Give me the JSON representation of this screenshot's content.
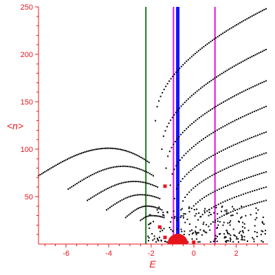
{
  "chart_data": {
    "type": "scatter",
    "xlabel": "E",
    "ylabel": "<n>",
    "xlim": [
      -7.3,
      3.5
    ],
    "ylim": [
      0,
      250
    ],
    "grid": false,
    "x_ticks": [
      -6,
      -4,
      -2,
      0,
      2
    ],
    "y_ticks": [
      50,
      100,
      150,
      200,
      250
    ],
    "colors": {
      "axis": "#e8141c",
      "points": "#000000",
      "highlight": "#e8141c",
      "line_green": "#1a7a1a",
      "line_blue": "#1414ff",
      "line_magenta": "#e010e0"
    },
    "vertical_lines": [
      {
        "x": -2.25,
        "color": "#1a7a1a",
        "width": 2
      },
      {
        "x": -0.95,
        "color": "#e010e0",
        "width": 2
      },
      {
        "x": -0.75,
        "color": "#1414ff",
        "width": 5
      },
      {
        "x": 1.0,
        "color": "#e010e0",
        "width": 2
      }
    ],
    "bands": [
      {
        "x_start": -7.3,
        "y_start": 72,
        "x_peak": -4.0,
        "y_peak": 101,
        "x_end": -2.1,
        "y_end": 86,
        "count": 70
      },
      {
        "x_start": -5.9,
        "y_start": 58,
        "x_peak": -3.3,
        "y_peak": 82,
        "x_end": -1.9,
        "y_end": 72,
        "count": 50
      },
      {
        "x_start": -5.0,
        "y_start": 46,
        "x_peak": -2.8,
        "y_peak": 66,
        "x_end": -1.7,
        "y_end": 60,
        "count": 42
      },
      {
        "x_start": -4.1,
        "y_start": 36,
        "x_peak": -2.5,
        "y_peak": 52,
        "x_end": -1.6,
        "y_end": 48,
        "count": 32
      },
      {
        "x_start": -3.2,
        "y_start": 28,
        "x_peak": -2.2,
        "y_peak": 40,
        "x_end": -1.5,
        "y_end": 36,
        "count": 24
      },
      {
        "x_start": -2.5,
        "y_start": 25,
        "x_peak": -2.0,
        "y_peak": 30,
        "x_end": -1.4,
        "y_end": 28,
        "count": 16
      }
    ],
    "curves": [
      {
        "x_start": -1.8,
        "y_start": 130,
        "x_end": 3.4,
        "y_end": 248,
        "count": 65
      },
      {
        "x_start": -1.5,
        "y_start": 100,
        "x_end": 3.4,
        "y_end": 205,
        "count": 60
      },
      {
        "x_start": -1.3,
        "y_start": 80,
        "x_end": 3.4,
        "y_end": 172,
        "count": 55
      },
      {
        "x_start": -1.1,
        "y_start": 62,
        "x_end": 3.4,
        "y_end": 145,
        "count": 50
      },
      {
        "x_start": -0.9,
        "y_start": 48,
        "x_end": 3.4,
        "y_end": 118,
        "count": 46
      },
      {
        "x_start": -0.6,
        "y_start": 36,
        "x_end": 3.4,
        "y_end": 96,
        "count": 42
      },
      {
        "x_start": -0.3,
        "y_start": 26,
        "x_end": 3.4,
        "y_end": 76,
        "count": 38
      },
      {
        "x_start": 0.1,
        "y_start": 18,
        "x_end": 3.4,
        "y_end": 60,
        "count": 32
      },
      {
        "x_start": 0.6,
        "y_start": 12,
        "x_end": 3.4,
        "y_end": 46,
        "count": 28
      }
    ],
    "scatter_cloud": {
      "x_min": -2.2,
      "x_max": 3.4,
      "y_min": 2,
      "y_max": 40,
      "count": 230
    },
    "highlight_points": [
      {
        "x": -0.75,
        "y": 0,
        "size": "large"
      },
      {
        "x": 0.0,
        "y": 2,
        "size": "small"
      },
      {
        "x": -1.35,
        "y": 7,
        "size": "small"
      },
      {
        "x": -1.6,
        "y": 18,
        "size": "small"
      },
      {
        "x": -1.35,
        "y": 61,
        "size": "small"
      }
    ]
  }
}
